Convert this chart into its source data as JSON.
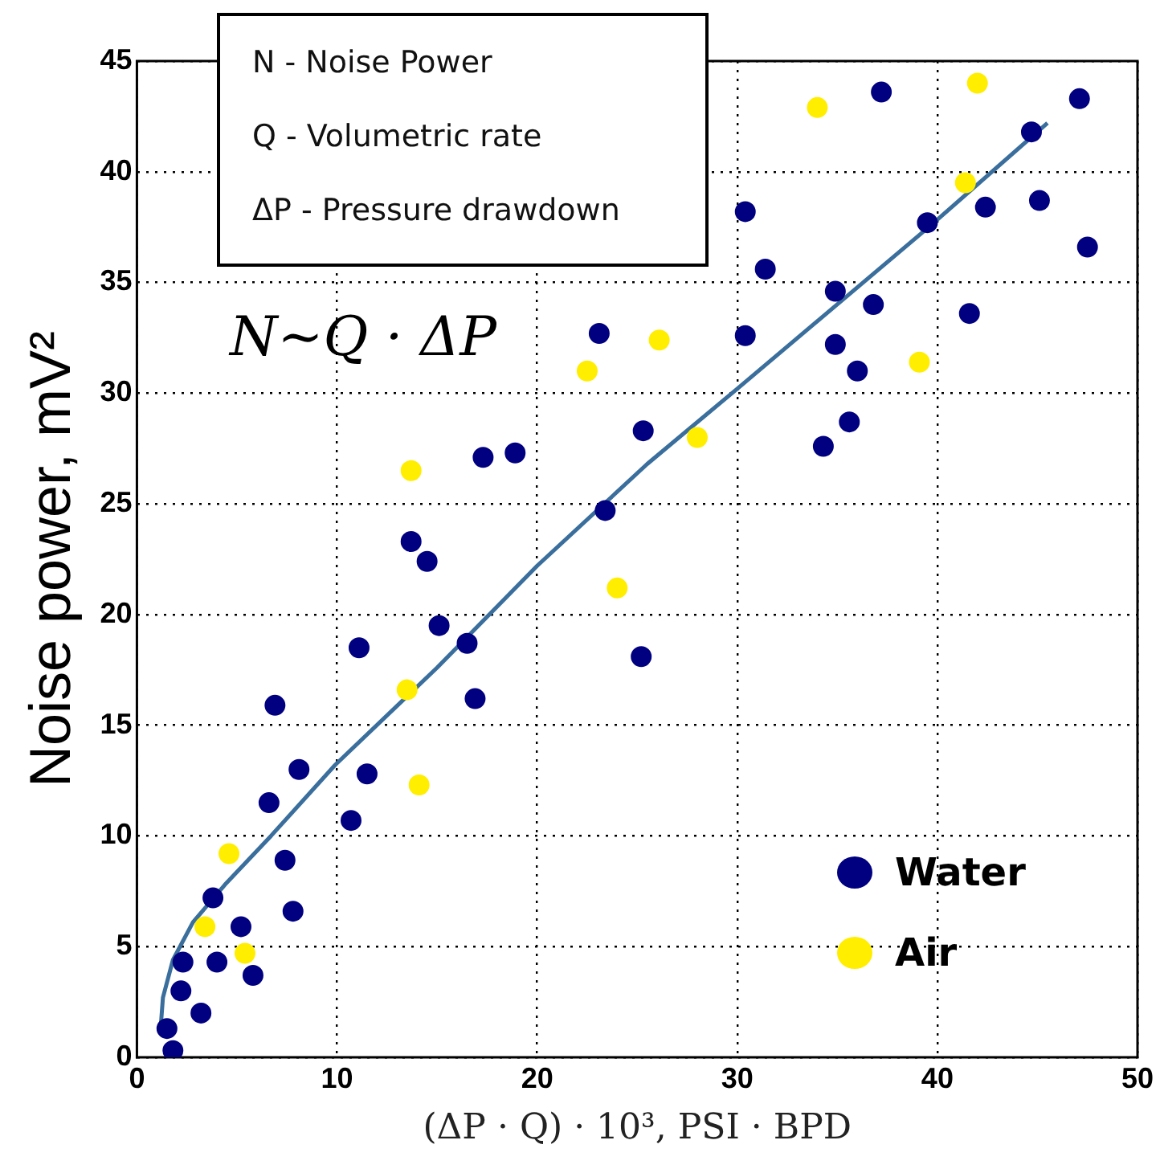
{
  "chart_data": {
    "type": "scatter",
    "xlabel": "(ΔP · Q) · 10³, PSI · BPD",
    "ylabel": "Noise power, mV²",
    "xlim": [
      0,
      50
    ],
    "xticks": [
      0,
      10,
      20,
      30,
      40,
      50
    ],
    "ylim": [
      0,
      45
    ],
    "yticks": [
      0,
      5,
      10,
      15,
      20,
      25,
      30,
      35,
      40,
      45
    ],
    "grid": true,
    "legend": "bottom right",
    "marker": "circle",
    "annotations": [
      "N - Noise Power",
      "Q - Volumetric rate",
      "ΔP - Pressure drawdown",
      "N∼Q · ΔP"
    ],
    "series": [
      {
        "name": "Water",
        "color": "#000080",
        "x": [
          1.5,
          1.8,
          2.2,
          2.3,
          3.2,
          3.8,
          4.0,
          5.2,
          5.8,
          6.6,
          6.9,
          7.4,
          7.8,
          8.1,
          10.7,
          11.1,
          11.5,
          13.7,
          14.5,
          15.1,
          16.5,
          16.9,
          25.2,
          23.1,
          17.3,
          18.9,
          23.4,
          25.3,
          37.2,
          47.1,
          44.7,
          30.4,
          39.5,
          42.4,
          45.1,
          47.5,
          31.4,
          34.9,
          36.8,
          41.6,
          30.4,
          34.9,
          36.0,
          35.6,
          34.3
        ],
        "values": [
          1.3,
          0.3,
          3.0,
          4.3,
          2.0,
          7.2,
          4.3,
          5.9,
          3.7,
          11.5,
          15.9,
          8.9,
          6.6,
          13.0,
          10.7,
          18.5,
          12.8,
          23.3,
          22.4,
          19.5,
          18.7,
          16.2,
          18.1,
          32.7,
          27.1,
          27.3,
          24.7,
          28.3,
          43.6,
          43.3,
          41.8,
          38.2,
          37.7,
          38.4,
          38.7,
          36.6,
          35.6,
          34.6,
          34.0,
          33.6,
          32.6,
          32.2,
          31.0,
          28.7,
          27.6
        ]
      },
      {
        "name": "Air",
        "color": "#ffee00",
        "x": [
          4.6,
          3.4,
          5.4,
          13.5,
          14.1,
          24.0,
          22.5,
          13.7,
          34.0,
          42.0,
          41.4,
          39.1,
          26.1,
          28.0
        ],
        "values": [
          9.2,
          5.9,
          4.7,
          16.6,
          12.3,
          21.2,
          31.0,
          26.5,
          42.9,
          44.0,
          39.5,
          31.4,
          32.4,
          28.0
        ]
      },
      {
        "type": "line",
        "color": "#3a6e9c",
        "marker": "none",
        "x": [
          1.2,
          1.3,
          1.8,
          2.8,
          4.4,
          6.7,
          9.9,
          15.0,
          20.0,
          25.5,
          30.0,
          39.7,
          45.5
        ],
        "values": [
          1.5,
          2.7,
          4.4,
          6.1,
          7.8,
          10.0,
          13.2,
          17.6,
          22.2,
          26.8,
          30.2,
          37.6,
          42.2
        ]
      }
    ]
  }
}
